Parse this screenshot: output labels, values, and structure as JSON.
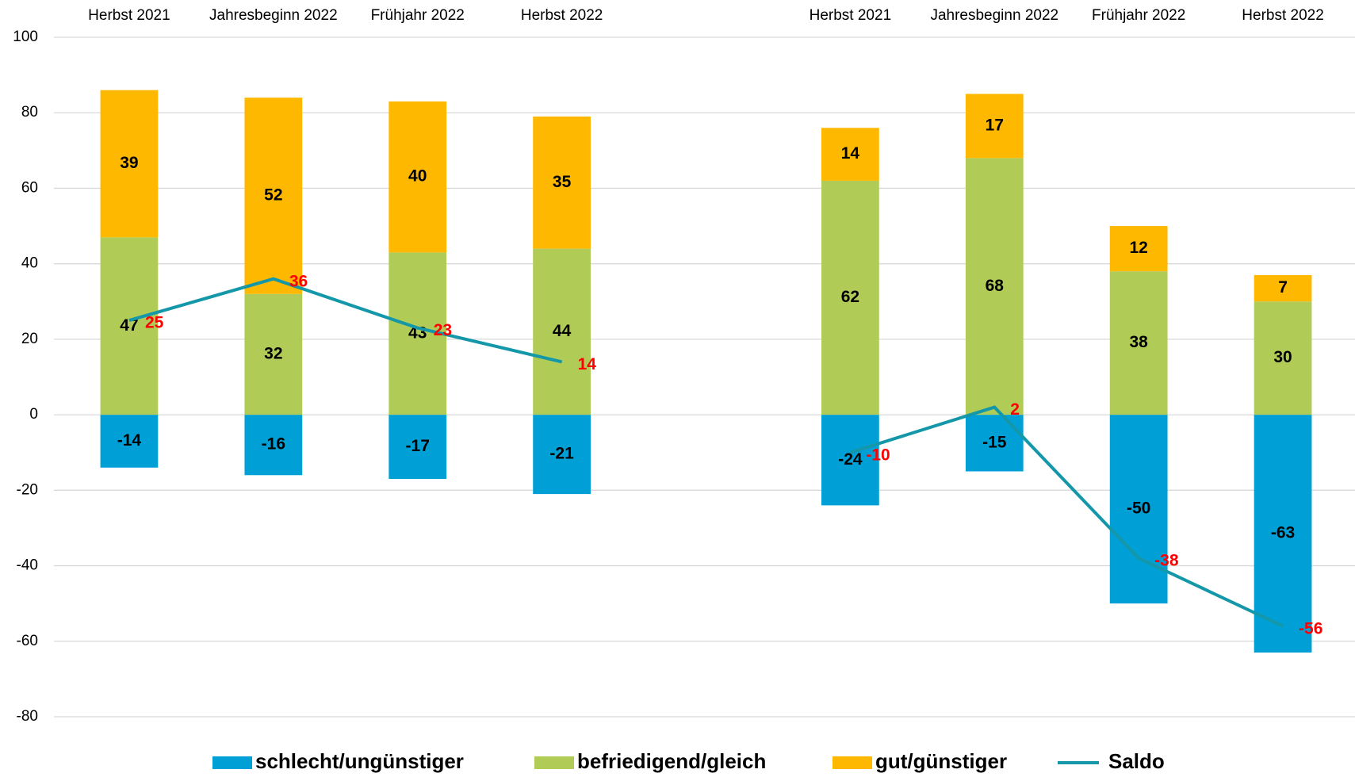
{
  "chart_data": {
    "type": "bar",
    "stacked": true,
    "categories": [
      "Herbst 2021",
      "Jahresbeginn 2022",
      "Frühjahr 2022",
      "Herbst 2022",
      null,
      "Herbst 2021",
      "Jahresbeginn 2022",
      "Frühjahr 2022",
      "Herbst 2022"
    ],
    "series": [
      {
        "name": "schlecht/ungünstiger",
        "color": "#00a0d6",
        "values": [
          -14,
          -16,
          -17,
          -21,
          null,
          -24,
          -15,
          -50,
          -63
        ]
      },
      {
        "name": "befriedigend/gleich",
        "color": "#b0cb56",
        "values": [
          47,
          32,
          43,
          44,
          null,
          62,
          68,
          38,
          30
        ]
      },
      {
        "name": "gut/günstiger",
        "color": "#ffb800",
        "values": [
          39,
          52,
          40,
          35,
          null,
          14,
          17,
          12,
          7
        ]
      },
      {
        "name": "Saldo",
        "type": "line",
        "color": "#1497a8",
        "label_color": "#ff0000",
        "values": [
          25,
          36,
          23,
          14,
          null,
          -10,
          2,
          -38,
          -56
        ]
      }
    ],
    "ylim": [
      -80,
      100
    ],
    "yticks": [
      -80,
      -60,
      -40,
      -20,
      0,
      20,
      40,
      60,
      80,
      100
    ],
    "grid": true,
    "legend": "bottom"
  }
}
